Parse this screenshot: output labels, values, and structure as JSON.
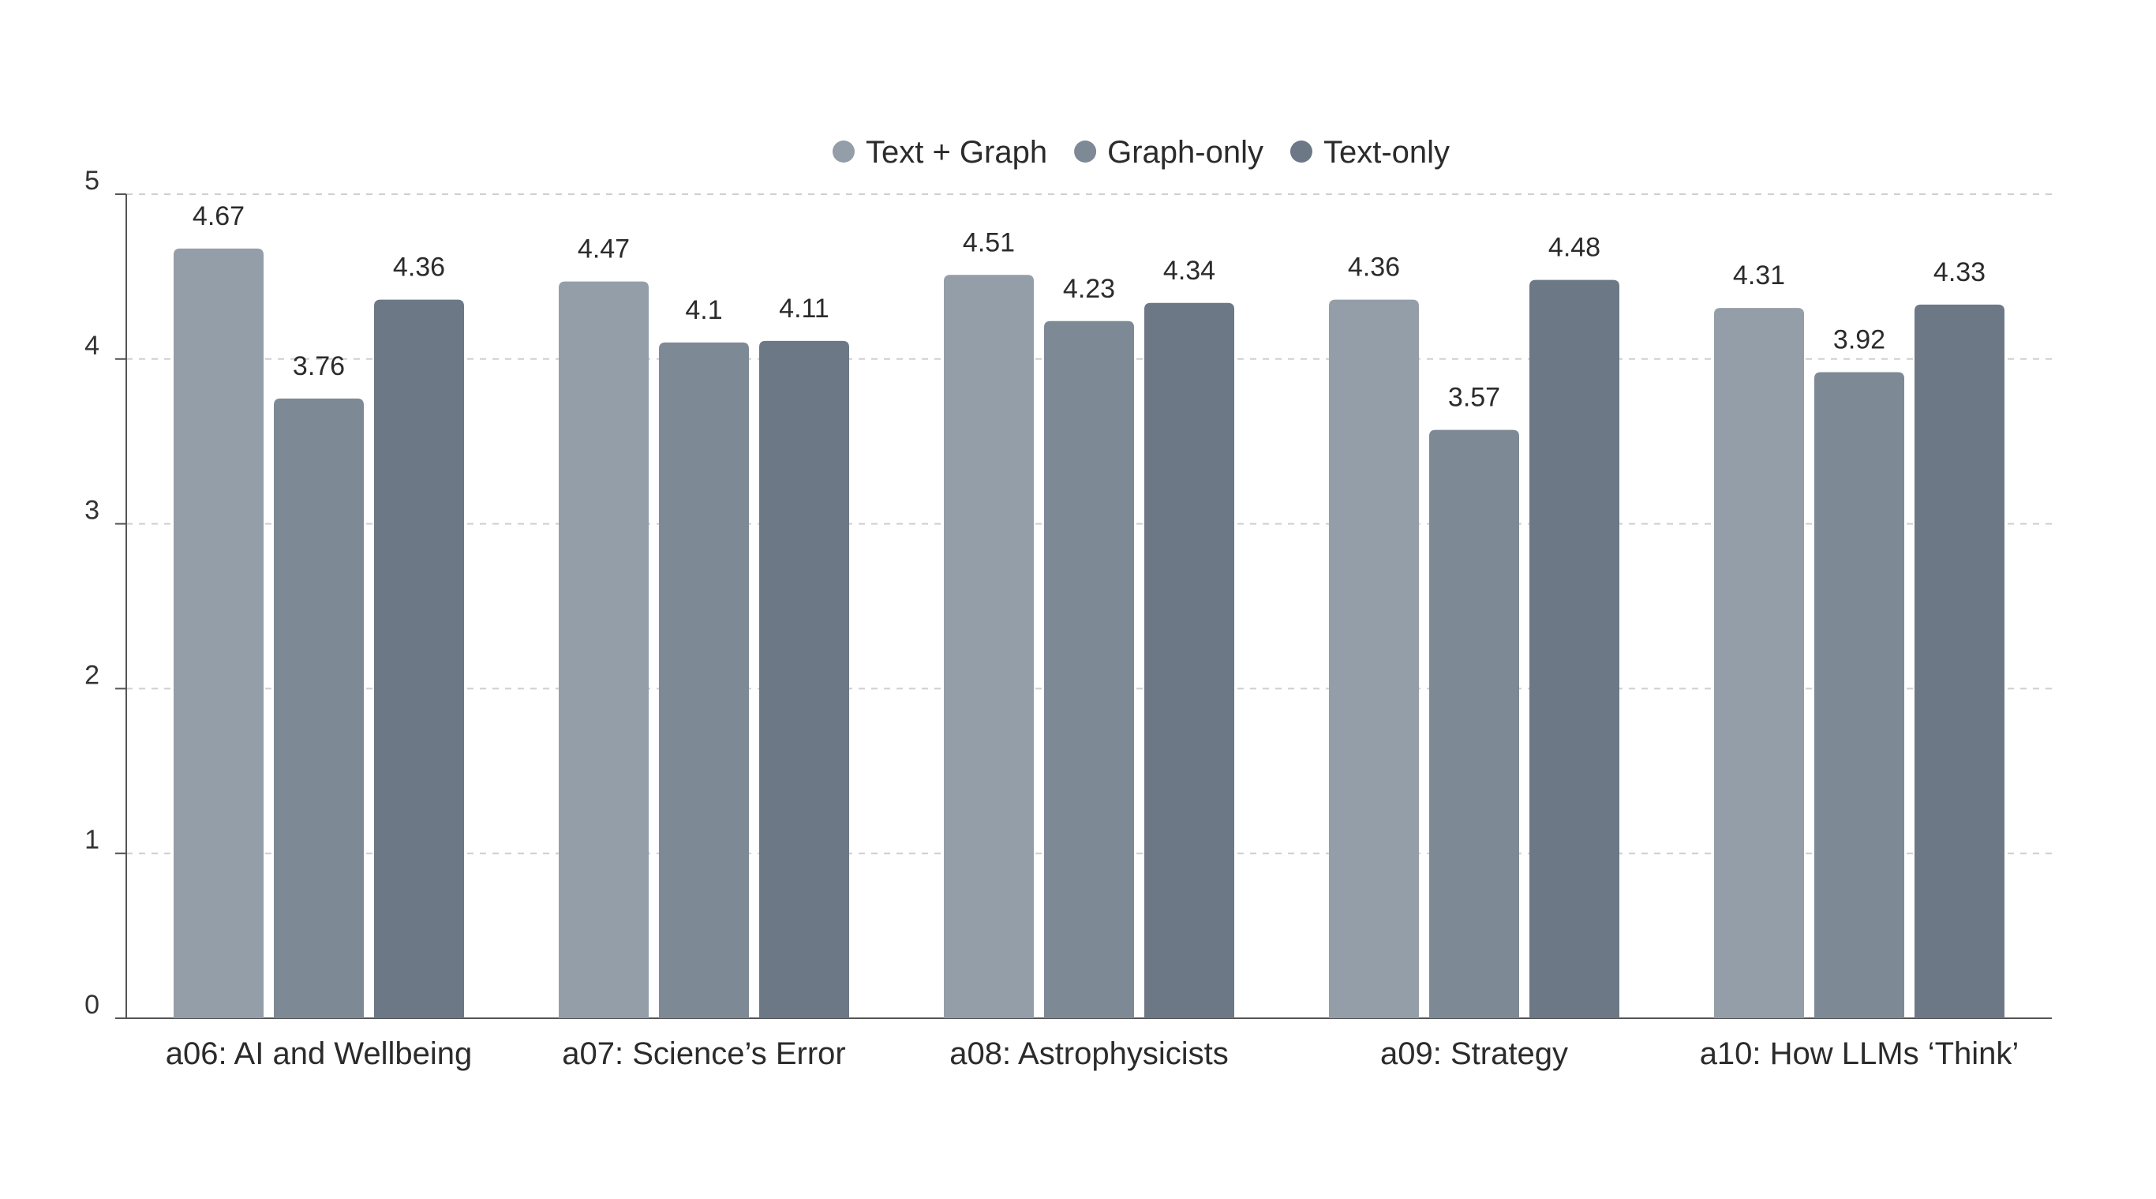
{
  "chart_data": {
    "type": "bar",
    "categories": [
      "a06: AI and Wellbeing",
      "a07: Science’s Error",
      "a08: Astrophysicists",
      "a09: Strategy",
      "a10: How LLMs ‘Think’"
    ],
    "series": [
      {
        "name": "Text + Graph",
        "color": "#949ea8",
        "values": [
          4.67,
          4.47,
          4.51,
          4.36,
          4.31
        ],
        "labels": [
          "4.67",
          "4.47",
          "4.51",
          "4.36",
          "4.31"
        ]
      },
      {
        "name": "Graph-only",
        "color": "#7e8996",
        "values": [
          3.76,
          4.1,
          4.23,
          3.57,
          3.92
        ],
        "labels": [
          "3.76",
          "4.1",
          "4.23",
          "3.57",
          "3.92"
        ]
      },
      {
        "name": "Text-only",
        "color": "#6d7886",
        "values": [
          4.36,
          4.11,
          4.34,
          4.48,
          4.33
        ],
        "labels": [
          "4.36",
          "4.11",
          "4.34",
          "4.48",
          "4.33"
        ]
      }
    ],
    "yticks": [
      "0",
      "1",
      "2",
      "3",
      "4",
      "5"
    ],
    "ylim": [
      0,
      5
    ],
    "grid": true,
    "legend_position": "top-center",
    "title": "",
    "xlabel": "",
    "ylabel": ""
  }
}
